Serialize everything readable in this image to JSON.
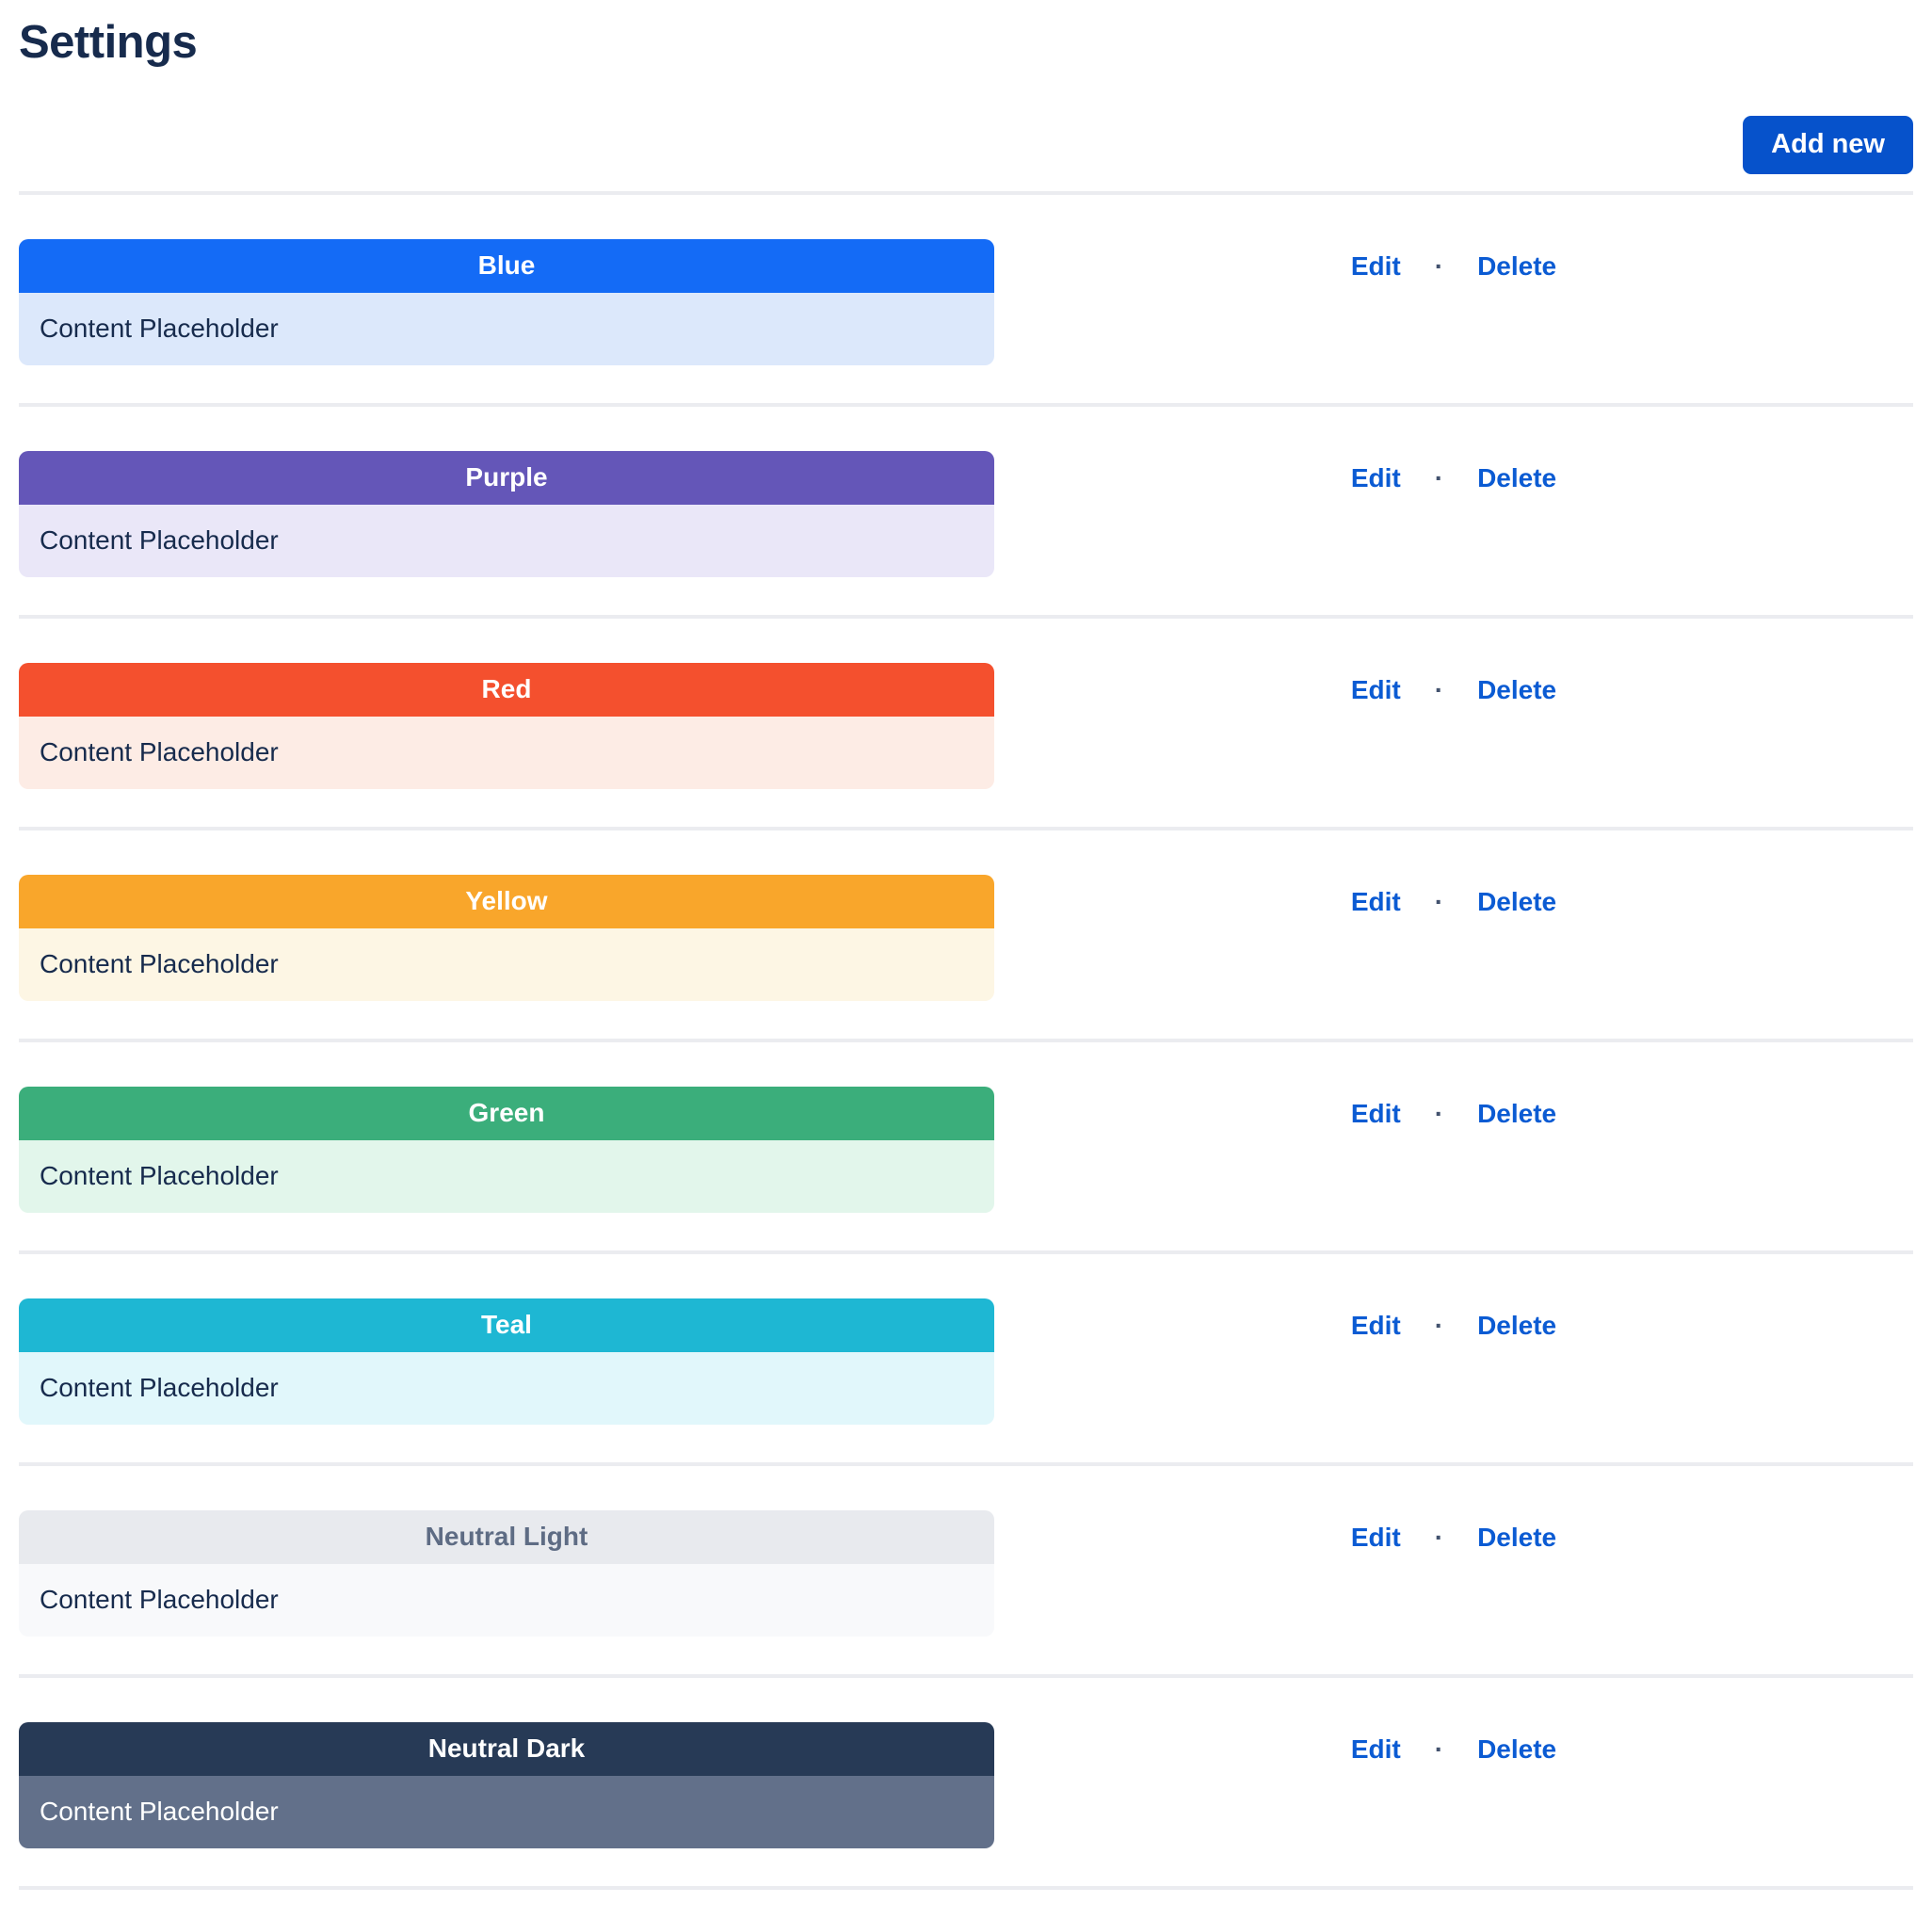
{
  "page": {
    "title": "Settings"
  },
  "toolbar": {
    "add_new_label": "Add new"
  },
  "actions": {
    "edit_label": "Edit",
    "separator": "·",
    "delete_label": "Delete"
  },
  "colors": {
    "title_text": "#172B4D",
    "button_blue": "#0652CB",
    "link_blue": "#0B5BD3",
    "divider": "#EBECF0"
  },
  "items": [
    {
      "label": "Blue",
      "header_bg": "#146BF6",
      "header_text": "#FFFFFF",
      "body_bg": "#DCE8FB",
      "body_text": "#172B4D",
      "content": "Content Placeholder"
    },
    {
      "label": "Purple",
      "header_bg": "#6456B8",
      "header_text": "#FFFFFF",
      "body_bg": "#EAE7F8",
      "body_text": "#172B4D",
      "content": "Content Placeholder"
    },
    {
      "label": "Red",
      "header_bg": "#F4502E",
      "header_text": "#FFFFFF",
      "body_bg": "#FDECE5",
      "body_text": "#172B4D",
      "content": "Content Placeholder"
    },
    {
      "label": "Yellow",
      "header_bg": "#F9A62B",
      "header_text": "#FFFFFF",
      "body_bg": "#FDF6E4",
      "body_text": "#172B4D",
      "content": "Content Placeholder"
    },
    {
      "label": "Green",
      "header_bg": "#3BAE7B",
      "header_text": "#FFFFFF",
      "body_bg": "#E2F6EB",
      "body_text": "#172B4D",
      "content": "Content Placeholder"
    },
    {
      "label": "Teal",
      "header_bg": "#1EB7D3",
      "header_text": "#FFFFFF",
      "body_bg": "#E1F7FB",
      "body_text": "#172B4D",
      "content": "Content Placeholder"
    },
    {
      "label": "Neutral Light",
      "header_bg": "#E8EAEE",
      "header_text": "#5E6C84",
      "body_bg": "#F8F9FB",
      "body_text": "#172B4D",
      "content": "Content Placeholder"
    },
    {
      "label": "Neutral Dark",
      "header_bg": "#273A56",
      "header_text": "#FFFFFF",
      "body_bg": "#62708A",
      "body_text": "#FFFFFF",
      "content": "Content Placeholder"
    }
  ]
}
